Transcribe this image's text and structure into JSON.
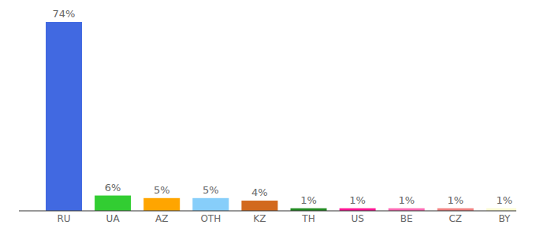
{
  "chart_data": {
    "type": "bar",
    "categories": [
      "RU",
      "UA",
      "AZ",
      "OTH",
      "KZ",
      "TH",
      "US",
      "BE",
      "CZ",
      "BY"
    ],
    "values": [
      74,
      6,
      5,
      5,
      4,
      1,
      1,
      1,
      1,
      1
    ],
    "value_labels": [
      "74%",
      "6%",
      "5%",
      "5%",
      "4%",
      "1%",
      "1%",
      "1%",
      "1%",
      "1%"
    ],
    "colors": [
      "#4169e1",
      "#32cd32",
      "#ffa500",
      "#87cefa",
      "#d2691e",
      "#228b22",
      "#ff1493",
      "#ff69b4",
      "#f08080",
      "#fafad2"
    ],
    "ylim": [
      0,
      74
    ],
    "data_labels": true,
    "tick_labels": "x"
  }
}
